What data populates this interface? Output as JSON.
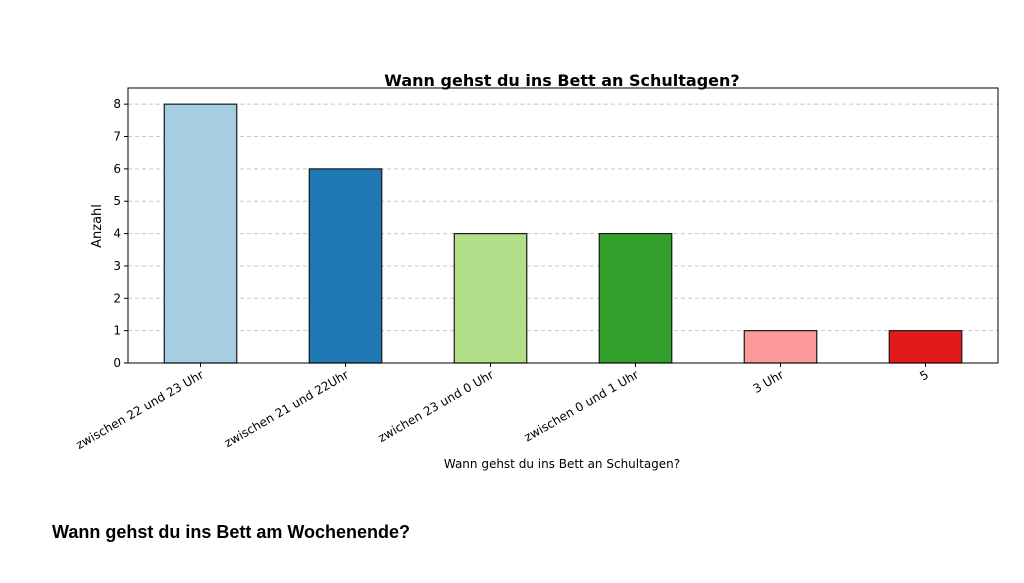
{
  "chart_data": {
    "type": "bar",
    "title": "Wann gehst du ins Bett an Schultagen?",
    "xlabel": "Wann gehst du ins Bett an Schultagen?",
    "ylabel": "Anzahl",
    "categories": [
      "zwischen 22 und 23 Uhr",
      "zwischen 21 und 22Uhr",
      "zwichen 23 und 0 Uhr",
      "zwischen 0 und 1 Uhr",
      "3 Uhr",
      "5"
    ],
    "values": [
      8,
      6,
      4,
      4,
      1,
      1
    ],
    "colors": [
      "#a6cee3",
      "#1f78b4",
      "#b2df8a",
      "#33a02c",
      "#fb9a99",
      "#e31a1c"
    ],
    "ylim": [
      0,
      8.5
    ],
    "yticks": [
      0,
      1,
      2,
      3,
      4,
      5,
      6,
      7,
      8
    ],
    "grid": "y-dashed",
    "legend": "none"
  },
  "next_section": {
    "heading": "Wann gehst du ins Bett am Wochenende?"
  }
}
